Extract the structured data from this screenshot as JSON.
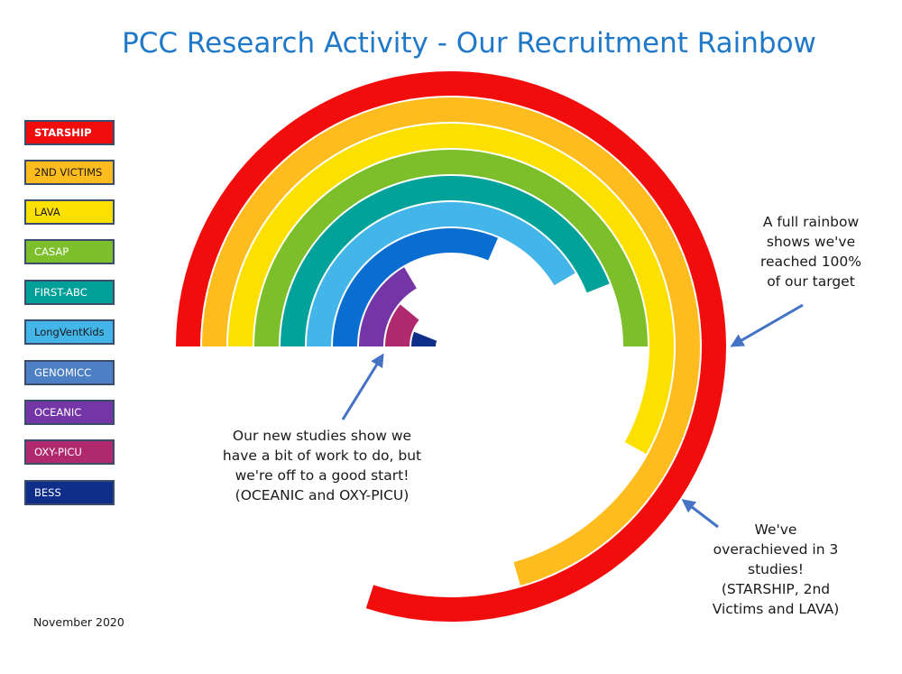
{
  "title": "PCC Research Activity - Our Recruitment Rainbow",
  "footer": "November 2020",
  "notes": {
    "full": "A full rainbow\nshows we've\nreached 100%\nof our target",
    "new_studies": "Our new studies show we\nhave a bit of work to do, but\nwe're off to a good start!\n(OCEANIC and OXY-PICU)",
    "overachieved": "We've\noverachieved in 3\nstudies!\n(STARSHIP, 2nd\nVictims and LAVA)"
  },
  "chart_data": {
    "type": "radial-bar",
    "title": "PCC Research Activity - Our Recruitment Rainbow",
    "unit": "% of recruitment target",
    "target": 100,
    "series": [
      {
        "name": "STARSHIP",
        "label": "STARSHIP",
        "value": 160,
        "color": "#f20d0d",
        "label_color": "#ffffff"
      },
      {
        "name": "2ND VICTIMS",
        "label": "2ND VICTIMS",
        "value": 141,
        "color": "#ffbc1f",
        "label_color": "#1a1a1a"
      },
      {
        "name": "LAVA",
        "label": "LAVA",
        "value": 116,
        "color": "#fce100",
        "label_color": "#1a1a1a"
      },
      {
        "name": "CASAP",
        "label": "CASAP",
        "value": 100,
        "color": "#7cbf2b",
        "label_color": "#ffffff"
      },
      {
        "name": "FIRST-ABC",
        "label": "FIRST-ABC",
        "value": 88,
        "color": "#00a29a",
        "label_color": "#ffffff"
      },
      {
        "name": "LongVentKids",
        "label": "LongVentKids",
        "value": 83,
        "color": "#43b5e8",
        "label_color": "#1a1a1a"
      },
      {
        "name": "GENOMICC",
        "label": "GENOMICC",
        "value": 63,
        "color": "#0a6ed0",
        "label_color": "#ffffff"
      },
      {
        "name": "OCEANIC",
        "label": "OCEANIC",
        "value": 33,
        "color": "#7435a6",
        "label_color": "#ffffff"
      },
      {
        "name": "OXY-PICU",
        "label": "OXY-PICU",
        "value": 22,
        "color": "#b0286e",
        "label_color": "#ffffff"
      },
      {
        "name": "BESS",
        "label": "BESS",
        "value": 12,
        "color": "#0f2e8a",
        "label_color": "#ffffff"
      }
    ],
    "legend_colors": [
      "#f20d0d",
      "#ffbc1f",
      "#fce100",
      "#7cbf2b",
      "#009f98",
      "#43b5e8",
      "#4d7fc4",
      "#7435a6",
      "#b0286e",
      "#0f2e8a"
    ],
    "legend": "left"
  }
}
